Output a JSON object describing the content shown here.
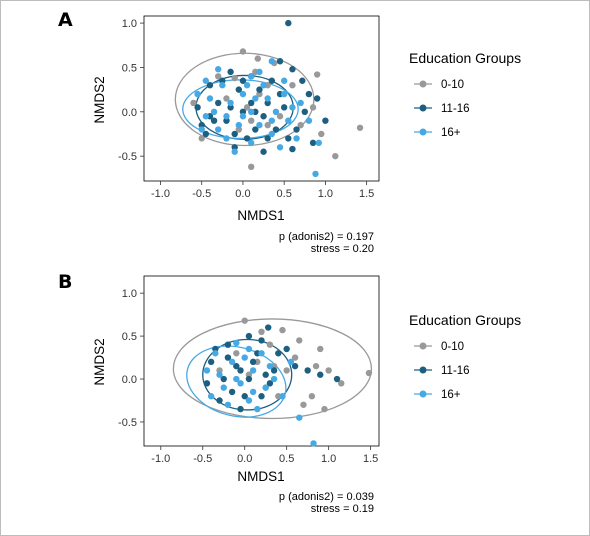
{
  "colors": {
    "0-10": "#999999",
    "11-16": "#1c5f80",
    "16+": "#47a9e3"
  },
  "chart_data": [
    {
      "type": "scatter",
      "panel": "A",
      "xlabel": "NMDS1",
      "ylabel": "NMDS2",
      "xlim": [
        -1.2,
        1.65
      ],
      "ylim": [
        -0.78,
        1.08
      ],
      "xticks": [
        "-1.0",
        "-0.5",
        "0.0",
        "0.5",
        "1.0",
        "1.5"
      ],
      "yticks": [
        "-0.5",
        "0.0",
        "0.5",
        "1.0"
      ],
      "legend_title": "Education Groups",
      "legend_position": "right",
      "annotation": [
        "p (adonis2) = 0.197",
        "stress = 0.20"
      ],
      "series": [
        {
          "name": "0-10",
          "ellipse": {
            "cx": 0.02,
            "cy": 0.14,
            "rx": 0.84,
            "ry": 0.52
          },
          "points": [
            [
              0.0,
              0.68
            ],
            [
              0.18,
              0.6
            ],
            [
              0.38,
              0.55
            ],
            [
              0.9,
              0.42
            ],
            [
              1.42,
              -0.18
            ],
            [
              0.95,
              -0.25
            ],
            [
              1.12,
              -0.5
            ],
            [
              -0.5,
              -0.3
            ],
            [
              0.1,
              -0.62
            ],
            [
              0.3,
              0.3
            ],
            [
              -0.2,
              0.15
            ],
            [
              -0.3,
              0.4
            ],
            [
              0.2,
              0.2
            ],
            [
              0.85,
              0.05
            ],
            [
              0.6,
              0.3
            ],
            [
              0.05,
              0.05
            ],
            [
              -0.6,
              0.1
            ],
            [
              0.3,
              -0.15
            ],
            [
              0.45,
              -0.05
            ],
            [
              -0.05,
              -0.2
            ],
            [
              0.15,
              0.45
            ],
            [
              -0.1,
              0.38
            ],
            [
              0.7,
              -0.15
            ],
            [
              0.1,
              -0.1
            ]
          ]
        },
        {
          "name": "11-16",
          "ellipse": {
            "cx": 0.02,
            "cy": 0.05,
            "rx": 0.59,
            "ry": 0.36
          },
          "points": [
            [
              0.55,
              1.0
            ],
            [
              0.45,
              0.57
            ],
            [
              0.6,
              0.48
            ],
            [
              0.72,
              0.35
            ],
            [
              0.9,
              0.15
            ],
            [
              1.0,
              -0.1
            ],
            [
              0.85,
              -0.35
            ],
            [
              0.6,
              -0.42
            ],
            [
              0.25,
              -0.45
            ],
            [
              -0.1,
              -0.4
            ],
            [
              -0.45,
              -0.25
            ],
            [
              -0.55,
              0.05
            ],
            [
              -0.4,
              0.3
            ],
            [
              -0.15,
              0.45
            ],
            [
              0.1,
              0.4
            ],
            [
              0.3,
              0.1
            ],
            [
              0.0,
              0.0
            ],
            [
              -0.2,
              -0.1
            ],
            [
              0.15,
              -0.2
            ],
            [
              -0.3,
              0.1
            ],
            [
              0.4,
              -0.2
            ],
            [
              0.2,
              0.25
            ],
            [
              -0.05,
              0.25
            ],
            [
              0.5,
              0.05
            ],
            [
              -0.35,
              -0.1
            ],
            [
              0.05,
              -0.3
            ],
            [
              0.35,
              0.35
            ],
            [
              -0.25,
              0.35
            ],
            [
              0.65,
              -0.2
            ],
            [
              0.8,
              0.2
            ],
            [
              -0.5,
              -0.15
            ],
            [
              0.1,
              0.1
            ],
            [
              0.25,
              -0.05
            ],
            [
              -0.15,
              0.05
            ],
            [
              0.55,
              -0.3
            ],
            [
              -0.1,
              -0.25
            ],
            [
              0.45,
              0.2
            ],
            [
              0.75,
              0.0
            ],
            [
              0.0,
              0.35
            ],
            [
              -0.4,
              -0.05
            ],
            [
              0.3,
              -0.3
            ],
            [
              0.15,
              0.0
            ]
          ]
        },
        {
          "name": "16+",
          "ellipse": {
            "cx": -0.03,
            "cy": 0.03,
            "rx": 0.7,
            "ry": 0.33
          },
          "points": [
            [
              0.92,
              -0.35
            ],
            [
              0.88,
              -0.7
            ],
            [
              0.35,
              0.57
            ],
            [
              -0.3,
              0.48
            ],
            [
              0.2,
              0.45
            ],
            [
              -0.55,
              0.2
            ],
            [
              -0.45,
              -0.05
            ],
            [
              -0.2,
              -0.3
            ],
            [
              0.1,
              -0.35
            ],
            [
              0.35,
              -0.25
            ],
            [
              0.55,
              -0.1
            ],
            [
              0.5,
              0.2
            ],
            [
              0.3,
              0.15
            ],
            [
              0.0,
              0.2
            ],
            [
              -0.15,
              0.1
            ],
            [
              -0.35,
              0.0
            ],
            [
              0.1,
              0.0
            ],
            [
              0.2,
              -0.15
            ],
            [
              -0.05,
              -0.15
            ],
            [
              0.4,
              0.0
            ],
            [
              -0.25,
              0.3
            ],
            [
              0.05,
              0.3
            ],
            [
              0.25,
              0.3
            ],
            [
              -0.5,
              -0.2
            ],
            [
              0.6,
              0.05
            ],
            [
              0.65,
              -0.3
            ],
            [
              -0.1,
              -0.45
            ],
            [
              0.45,
              -0.4
            ],
            [
              -0.4,
              0.15
            ],
            [
              0.15,
              0.15
            ],
            [
              -0.2,
              -0.05
            ],
            [
              0.35,
              -0.1
            ],
            [
              0.0,
              -0.05
            ],
            [
              -0.3,
              -0.2
            ],
            [
              0.1,
              0.4
            ],
            [
              0.5,
              0.35
            ],
            [
              0.7,
              0.1
            ],
            [
              0.8,
              -0.1
            ],
            [
              -0.45,
              0.35
            ]
          ]
        }
      ]
    },
    {
      "type": "scatter",
      "panel": "B",
      "xlabel": "NMDS1",
      "ylabel": "NMDS2",
      "xlim": [
        -1.2,
        1.6
      ],
      "ylim": [
        -0.78,
        1.2
      ],
      "xticks": [
        "-1.0",
        "-0.5",
        "0.0",
        "0.5",
        "1.0",
        "1.5"
      ],
      "yticks": [
        "-0.5",
        "0.0",
        "0.5",
        "1.0"
      ],
      "legend_title": "Education Groups",
      "legend_position": "right",
      "annotation": [
        "p (adonis2) = 0.039",
        "stress = 0.19"
      ],
      "series": [
        {
          "name": "0-10",
          "ellipse": {
            "cx": 0.33,
            "cy": 0.12,
            "rx": 1.18,
            "ry": 0.58
          },
          "points": [
            [
              0.0,
              0.68
            ],
            [
              0.45,
              0.57
            ],
            [
              0.9,
              0.35
            ],
            [
              1.0,
              0.1
            ],
            [
              1.48,
              0.07
            ],
            [
              1.15,
              -0.05
            ],
            [
              0.8,
              -0.2
            ],
            [
              0.6,
              0.25
            ],
            [
              0.3,
              0.4
            ],
            [
              0.5,
              0.1
            ],
            [
              0.7,
              -0.3
            ],
            [
              0.15,
              0.2
            ],
            [
              0.25,
              -0.1
            ],
            [
              -0.1,
              0.3
            ],
            [
              0.4,
              -0.2
            ],
            [
              0.05,
              0.05
            ],
            [
              0.95,
              -0.35
            ],
            [
              0.65,
              0.45
            ],
            [
              0.2,
              0.55
            ],
            [
              -0.3,
              0.1
            ],
            [
              0.35,
              0.15
            ],
            [
              0.85,
              0.15
            ]
          ]
        },
        {
          "name": "11-16",
          "ellipse": {
            "cx": 0.03,
            "cy": 0.05,
            "rx": 0.53,
            "ry": 0.41
          },
          "points": [
            [
              0.28,
              0.6
            ],
            [
              0.05,
              0.5
            ],
            [
              -0.2,
              0.4
            ],
            [
              -0.4,
              0.2
            ],
            [
              -0.45,
              -0.05
            ],
            [
              -0.3,
              -0.25
            ],
            [
              -0.05,
              -0.35
            ],
            [
              0.2,
              -0.2
            ],
            [
              0.35,
              0.1
            ],
            [
              0.15,
              0.3
            ],
            [
              -0.1,
              0.15
            ],
            [
              0.05,
              0.0
            ],
            [
              -0.25,
              0.0
            ],
            [
              0.25,
              0.05
            ],
            [
              -0.15,
              -0.15
            ],
            [
              0.4,
              0.3
            ],
            [
              0.0,
              -0.2
            ],
            [
              -0.35,
              0.35
            ],
            [
              0.3,
              -0.05
            ],
            [
              0.1,
              0.2
            ],
            [
              -0.2,
              0.25
            ],
            [
              0.5,
              0.35
            ],
            [
              0.6,
              0.15
            ],
            [
              0.75,
              0.1
            ],
            [
              1.1,
              0.0
            ],
            [
              0.9,
              0.05
            ],
            [
              0.2,
              0.45
            ],
            [
              -0.05,
              0.1
            ]
          ]
        },
        {
          "name": "16+",
          "ellipse": {
            "cx": -0.1,
            "cy": -0.03,
            "rx": 0.6,
            "ry": 0.4,
            "rotate_deg": 14
          },
          "points": [
            [
              0.82,
              -0.75
            ],
            [
              -0.1,
              0.42
            ],
            [
              -0.3,
              0.05
            ],
            [
              -0.4,
              -0.2
            ],
            [
              -0.2,
              -0.3
            ],
            [
              0.05,
              -0.25
            ],
            [
              0.25,
              -0.1
            ],
            [
              0.1,
              0.1
            ],
            [
              -0.15,
              0.2
            ],
            [
              0.2,
              0.3
            ],
            [
              0.35,
              0.0
            ],
            [
              -0.05,
              -0.05
            ],
            [
              -0.45,
              0.1
            ],
            [
              0.0,
              0.25
            ],
            [
              0.15,
              -0.35
            ],
            [
              0.45,
              -0.2
            ],
            [
              0.65,
              -0.45
            ],
            [
              -0.35,
              0.3
            ],
            [
              0.3,
              0.15
            ],
            [
              -0.25,
              -0.1
            ],
            [
              0.1,
              -0.15
            ],
            [
              0.05,
              0.35
            ],
            [
              -0.1,
              0.0
            ],
            [
              0.55,
              0.2
            ]
          ]
        }
      ]
    }
  ]
}
